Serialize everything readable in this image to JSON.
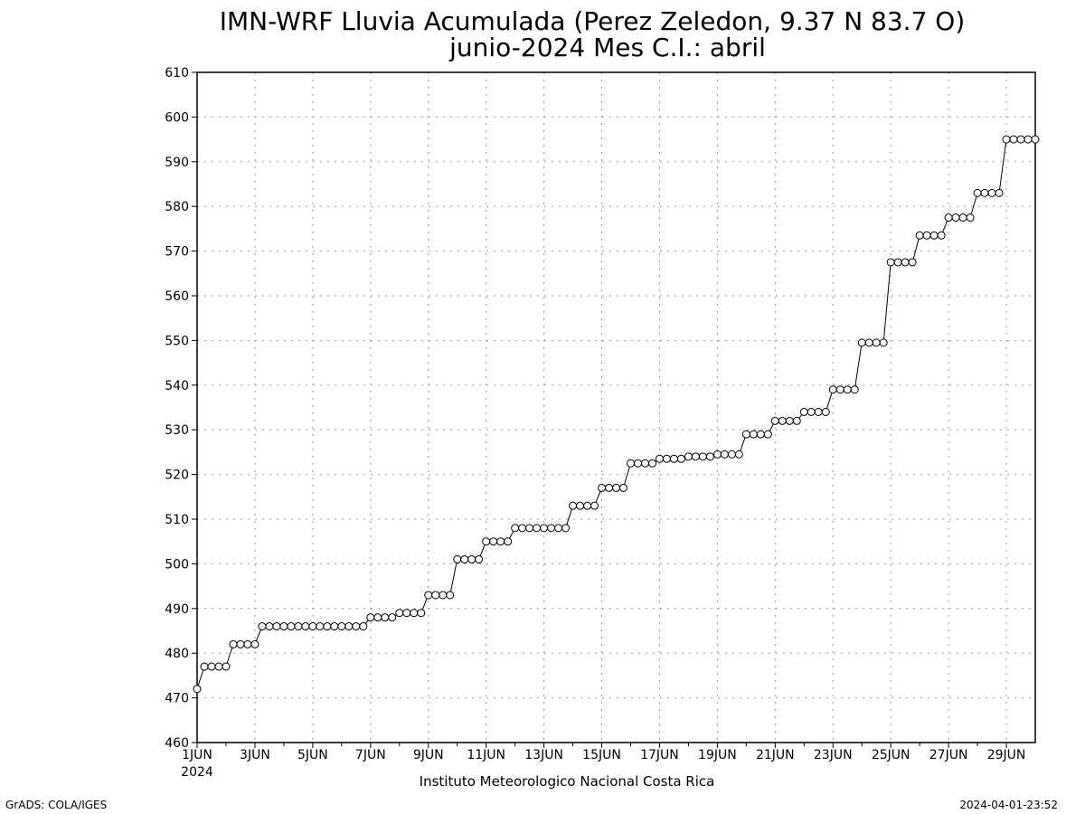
{
  "footer": {
    "left": "GrADS: COLA/IGES",
    "right": "2024-04-01-23:52"
  },
  "chart_data": {
    "type": "line",
    "title": "IMN-WRF  Lluvia Acumulada (Perez Zeledon, 9.37  N 83.7  O)",
    "subtitle": "junio-2024 Mes C.I.: abril",
    "xlabel": "Instituto Meteorologico Nacional Costa Rica",
    "ylabel": "",
    "x_start": "2024-06-01 00:00",
    "x_step_hours": 6,
    "xlim": [
      "2024-06-01 00:00",
      "2024-06-30 00:00"
    ],
    "ylim": [
      460,
      610
    ],
    "y_ticks": [
      460,
      470,
      480,
      490,
      500,
      510,
      520,
      530,
      540,
      550,
      560,
      570,
      580,
      590,
      600,
      610
    ],
    "x_tick_labels": [
      "1JUN",
      "3JUN",
      "5JUN",
      "7JUN",
      "9JUN",
      "11JUN",
      "13JUN",
      "15JUN",
      "17JUN",
      "19JUN",
      "21JUN",
      "23JUN",
      "25JUN",
      "27JUN",
      "29JUN"
    ],
    "x_tick_sublabel": "2024",
    "grid": true,
    "marker": "open-circle",
    "series": [
      {
        "values": [
          472,
          477,
          477,
          477,
          477,
          482,
          482,
          482,
          482,
          486,
          486,
          486,
          486,
          486,
          486,
          486,
          486,
          486,
          486,
          486,
          486,
          486,
          486,
          486,
          488,
          488,
          488,
          488,
          489,
          489,
          489,
          489,
          493,
          493,
          493,
          493,
          501,
          501,
          501,
          501,
          505,
          505,
          505,
          505,
          508,
          508,
          508,
          508,
          508,
          508,
          508,
          508,
          513,
          513,
          513,
          513,
          517,
          517,
          517,
          517,
          522.5,
          522.5,
          522.5,
          522.5,
          523.5,
          523.5,
          523.5,
          523.5,
          524,
          524,
          524,
          524,
          524.5,
          524.5,
          524.5,
          524.5,
          529,
          529,
          529,
          529,
          532,
          532,
          532,
          532,
          534,
          534,
          534,
          534,
          539,
          539,
          539,
          539,
          549.5,
          549.5,
          549.5,
          549.5,
          567.5,
          567.5,
          567.5,
          567.5,
          573.5,
          573.5,
          573.5,
          573.5,
          577.5,
          577.5,
          577.5,
          577.5,
          583,
          583,
          583,
          583,
          595,
          595,
          595,
          595,
          595
        ]
      }
    ]
  }
}
